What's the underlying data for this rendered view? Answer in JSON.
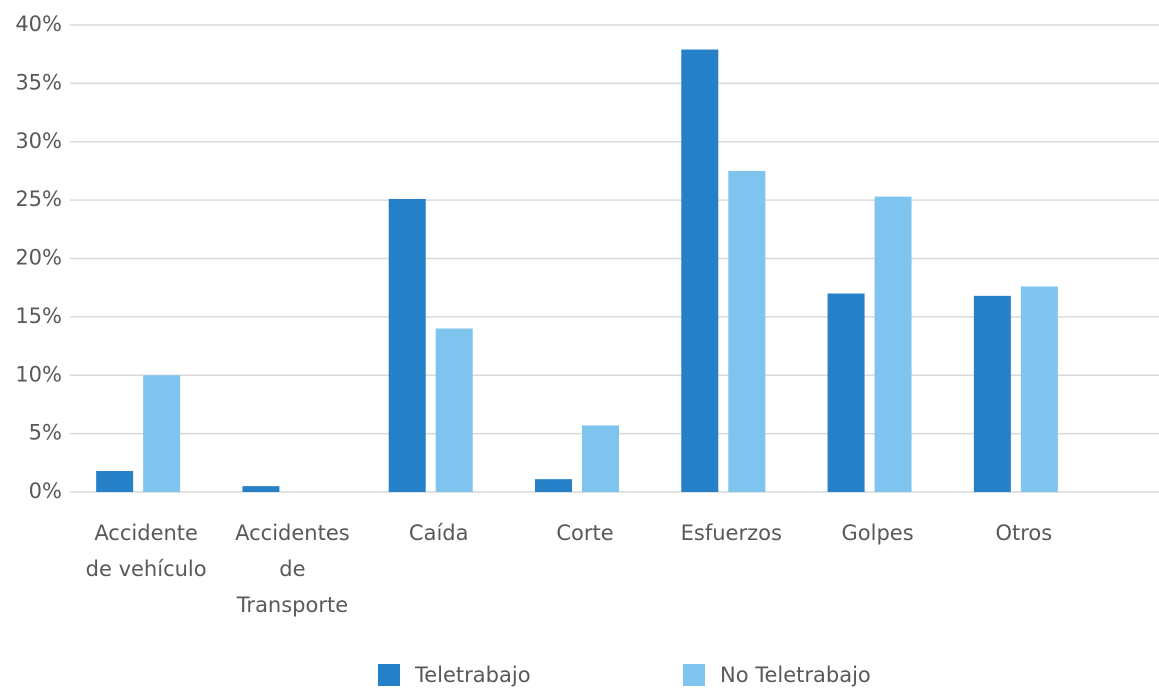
{
  "chart_data": {
    "type": "bar",
    "categories": [
      "Accidente\nde vehículo",
      "Accidentes\nde\nTransporte",
      "Caída",
      "Corte",
      "Esfuerzos",
      "Golpes",
      "Otros"
    ],
    "series": [
      {
        "name": "Teletrabajo",
        "color": "#2680c8",
        "values": [
          1.8,
          0.5,
          25.1,
          1.1,
          37.9,
          17.0,
          16.8
        ]
      },
      {
        "name": "No Teletrabajo",
        "color": "#7fc4ee",
        "values": [
          10.0,
          0,
          14.0,
          5.7,
          27.5,
          25.3,
          17.6
        ]
      }
    ],
    "ylim": [
      0,
      40
    ],
    "yticks": [
      {
        "value": 0,
        "label": "0%"
      },
      {
        "value": 5,
        "label": "5%"
      },
      {
        "value": 10,
        "label": "10%"
      },
      {
        "value": 15,
        "label": "15%"
      },
      {
        "value": 20,
        "label": "20%"
      },
      {
        "value": 25,
        "label": "25%"
      },
      {
        "value": 30,
        "label": "30%"
      },
      {
        "value": 35,
        "label": "35%"
      },
      {
        "value": 40,
        "label": "40%"
      }
    ],
    "grid": true,
    "legend": "bottom"
  }
}
